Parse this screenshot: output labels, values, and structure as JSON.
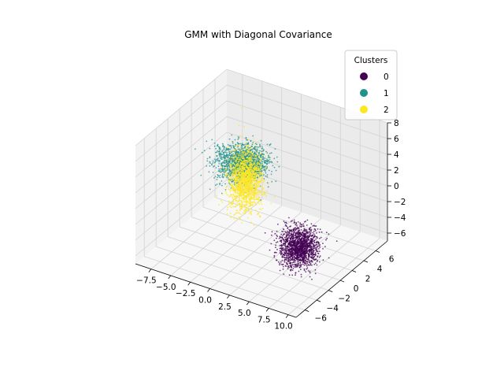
{
  "chart_data": {
    "type": "scatter3d",
    "title": "GMM with Diagonal Covariance",
    "xlabel": "",
    "ylabel": "",
    "zlabel": "",
    "xlim": [
      -9.5,
      11
    ],
    "ylim": [
      -7.5,
      8
    ],
    "zlim": [
      -7,
      8
    ],
    "x_ticks": [
      "−7.5",
      "−5.0",
      "−2.5",
      "0.0",
      "2.5",
      "5.0",
      "7.5",
      "10.0"
    ],
    "y_ticks": [
      "−6",
      "−4",
      "−2",
      "0",
      "2",
      "4",
      "6"
    ],
    "z_ticks": [
      "−6",
      "−4",
      "−2",
      "0",
      "2",
      "4",
      "6",
      "8"
    ],
    "grid": true,
    "legend": {
      "title": "Clusters",
      "placement": "top-right",
      "entries": [
        {
          "label": "0",
          "color": "#440154"
        },
        {
          "label": "1",
          "color": "#21918c"
        },
        {
          "label": "2",
          "color": "#fde725"
        }
      ]
    },
    "clusters": [
      {
        "label": "0",
        "color": "#440154",
        "mean": [
          7.4,
          -2.2,
          -2.6
        ],
        "std": [
          1.0,
          0.9,
          1.1
        ],
        "approx_points": 1600
      },
      {
        "label": "1",
        "color": "#21918c",
        "mean": [
          -4.5,
          4.0,
          0.2
        ],
        "std": [
          1.4,
          1.1,
          0.9
        ],
        "approx_points": 1600
      },
      {
        "label": "2",
        "color": "#fde725",
        "mean": [
          -3.0,
          2.5,
          -0.5
        ],
        "std": [
          0.9,
          0.8,
          1.8
        ],
        "approx_points": 1600
      }
    ]
  }
}
